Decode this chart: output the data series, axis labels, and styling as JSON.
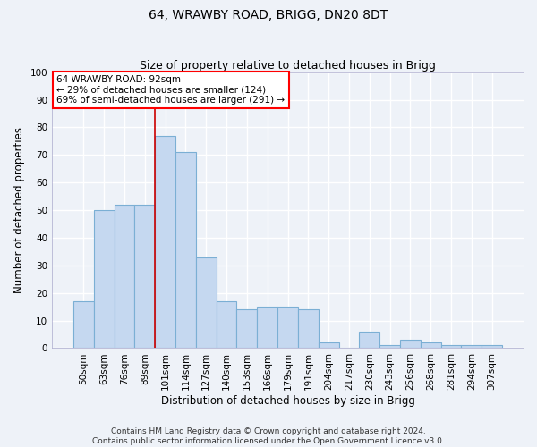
{
  "title": "64, WRAWBY ROAD, BRIGG, DN20 8DT",
  "subtitle": "Size of property relative to detached houses in Brigg",
  "xlabel": "Distribution of detached houses by size in Brigg",
  "ylabel": "Number of detached properties",
  "bar_labels": [
    "50sqm",
    "63sqm",
    "76sqm",
    "89sqm",
    "101sqm",
    "114sqm",
    "127sqm",
    "140sqm",
    "153sqm",
    "166sqm",
    "179sqm",
    "191sqm",
    "204sqm",
    "217sqm",
    "230sqm",
    "243sqm",
    "256sqm",
    "268sqm",
    "281sqm",
    "294sqm",
    "307sqm"
  ],
  "bar_values": [
    17,
    50,
    52,
    52,
    77,
    71,
    33,
    17,
    14,
    15,
    15,
    14,
    2,
    0,
    6,
    1,
    3,
    2,
    1,
    1,
    1
  ],
  "bar_color": "#c5d8f0",
  "bar_edge_color": "#7bafd4",
  "vline_x": 3.5,
  "vline_color": "#cc0000",
  "ylim": [
    0,
    100
  ],
  "yticks": [
    0,
    10,
    20,
    30,
    40,
    50,
    60,
    70,
    80,
    90,
    100
  ],
  "annotation_lines": [
    "64 WRAWBY ROAD: 92sqm",
    "← 29% of detached houses are smaller (124)",
    "69% of semi-detached houses are larger (291) →"
  ],
  "footer_line1": "Contains HM Land Registry data © Crown copyright and database right 2024.",
  "footer_line2": "Contains public sector information licensed under the Open Government Licence v3.0.",
  "bg_color": "#eef2f8",
  "grid_color": "#ffffff",
  "title_fontsize": 10,
  "subtitle_fontsize": 9,
  "axis_label_fontsize": 8.5,
  "tick_fontsize": 7.5,
  "footer_fontsize": 6.5
}
